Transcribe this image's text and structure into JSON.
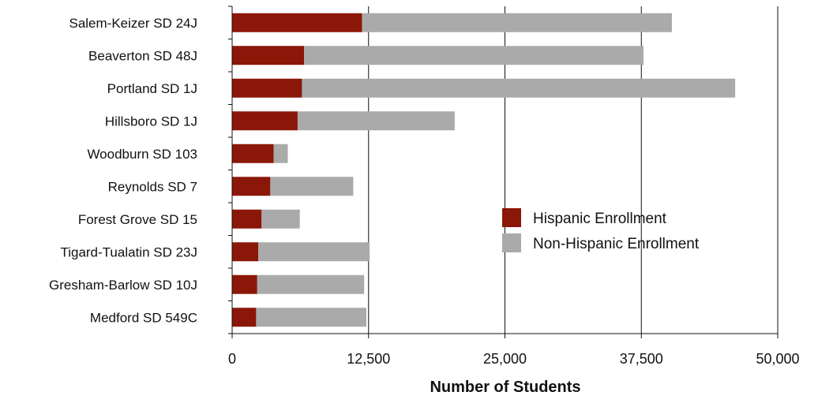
{
  "chart_data": {
    "type": "bar",
    "orientation": "horizontal",
    "stacked": true,
    "categories": [
      "Salem-Keizer SD 24J",
      "Beaverton SD 48J",
      "Portland SD 1J",
      "Hillsboro SD 1J",
      "Woodburn SD 103",
      "Reynolds SD 7",
      "Forest Grove SD 15",
      "Tigard-Tualatin SD 23J",
      "Gresham-Barlow SD 10J",
      "Medford SD 549C"
    ],
    "series": [
      {
        "name": "Hispanic Enrollment",
        "color": "#8b1708",
        "values": [
          11900,
          6600,
          6400,
          6000,
          3800,
          3500,
          2700,
          2400,
          2300,
          2200
        ]
      },
      {
        "name": "Non-Hispanic Enrollment",
        "color": "#aaaaaa",
        "values": [
          28400,
          31100,
          39700,
          14400,
          1300,
          7600,
          3500,
          10200,
          9800,
          10100
        ]
      }
    ],
    "xlabel": "Number of Students",
    "ylabel": "",
    "xlim": [
      0,
      50000
    ],
    "xticks": [
      0,
      12500,
      25000,
      37500,
      50000
    ],
    "xtick_labels": [
      "0",
      "12,500",
      "25,000",
      "37,500",
      "50,000"
    ],
    "grid": "vertical",
    "legend_position": "right"
  }
}
